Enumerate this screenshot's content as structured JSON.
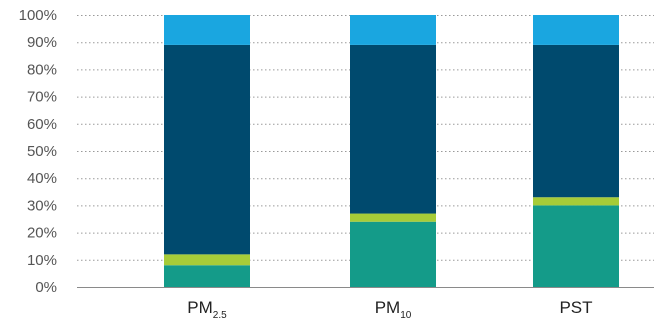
{
  "chart_data": {
    "type": "bar",
    "stacked": true,
    "categories": [
      {
        "main": "PM",
        "sub": "2.5"
      },
      {
        "main": "PM",
        "sub": "10"
      },
      {
        "main": "PST",
        "sub": ""
      }
    ],
    "series": [
      {
        "color": "#149b89",
        "values": [
          8,
          24,
          30
        ]
      },
      {
        "color": "#a6cc38",
        "values": [
          4,
          3,
          3
        ]
      },
      {
        "color": "#004a6e",
        "values": [
          77,
          62,
          56
        ]
      },
      {
        "color": "#1aa6e0",
        "values": [
          11,
          11,
          11
        ]
      }
    ],
    "ylim": [
      0,
      100
    ],
    "yticks": [
      "0%",
      "10%",
      "20%",
      "30%",
      "40%",
      "50%",
      "60%",
      "70%",
      "80%",
      "90%",
      "100%"
    ],
    "grid": true,
    "title": "",
    "xlabel": "",
    "ylabel": ""
  }
}
